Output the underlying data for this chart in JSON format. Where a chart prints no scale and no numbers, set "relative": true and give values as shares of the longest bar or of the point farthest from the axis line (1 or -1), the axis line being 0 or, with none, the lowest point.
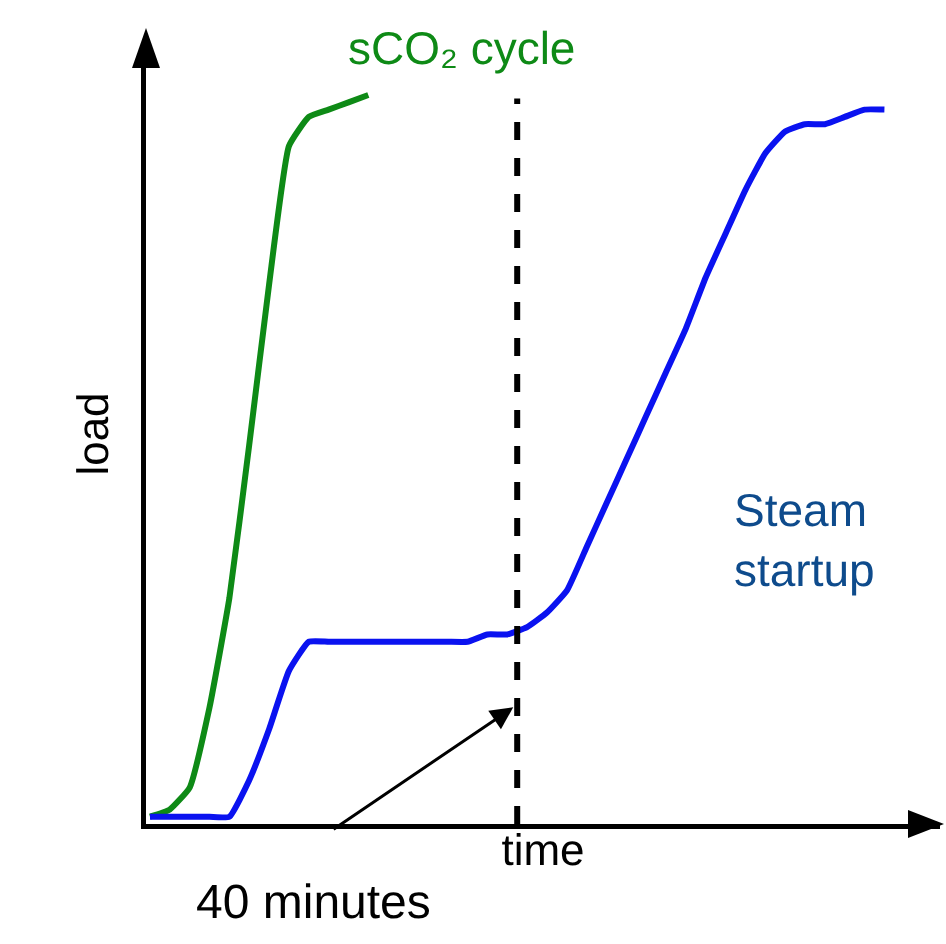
{
  "chart_data": {
    "type": "line",
    "relative": true,
    "xlabel": "time",
    "ylabel": "load",
    "legend": false,
    "grid": false,
    "marker": "none",
    "line_style": "solid",
    "categories": [
      null,
      null,
      null,
      null,
      null,
      null,
      null,
      null,
      null,
      null,
      null,
      null,
      null,
      null,
      null,
      null,
      null,
      null,
      null,
      null,
      null,
      null,
      null,
      null,
      null,
      null,
      null,
      null,
      null,
      null,
      null,
      null,
      null,
      null,
      null,
      null,
      null,
      null
    ],
    "series": [
      {
        "name": "sCO₂ cycle",
        "color": "#0e8a16",
        "values": [
          0.01,
          0.02,
          0.05,
          0.16,
          0.31,
          0.52,
          0.74,
          0.93,
          0.97,
          0.98,
          0.99,
          1.0,
          null,
          null,
          null,
          null,
          null,
          null,
          null,
          null,
          null,
          null,
          null,
          null,
          null,
          null,
          null,
          null,
          null,
          null,
          null,
          null,
          null,
          null,
          null,
          null,
          null,
          null
        ]
      },
      {
        "name": "Steam startup",
        "color": "#0a12f0",
        "values": [
          0.01,
          0.01,
          0.01,
          0.01,
          0.01,
          0.06,
          0.13,
          0.21,
          0.25,
          0.25,
          0.25,
          0.25,
          0.25,
          0.25,
          0.25,
          0.25,
          0.25,
          0.26,
          0.26,
          0.27,
          0.29,
          0.32,
          0.38,
          0.44,
          0.5,
          0.56,
          0.62,
          0.68,
          0.75,
          0.81,
          0.87,
          0.92,
          0.95,
          0.96,
          0.96,
          0.97,
          0.98,
          0.98
        ]
      }
    ],
    "annotations": [
      "40 minutes"
    ]
  }
}
